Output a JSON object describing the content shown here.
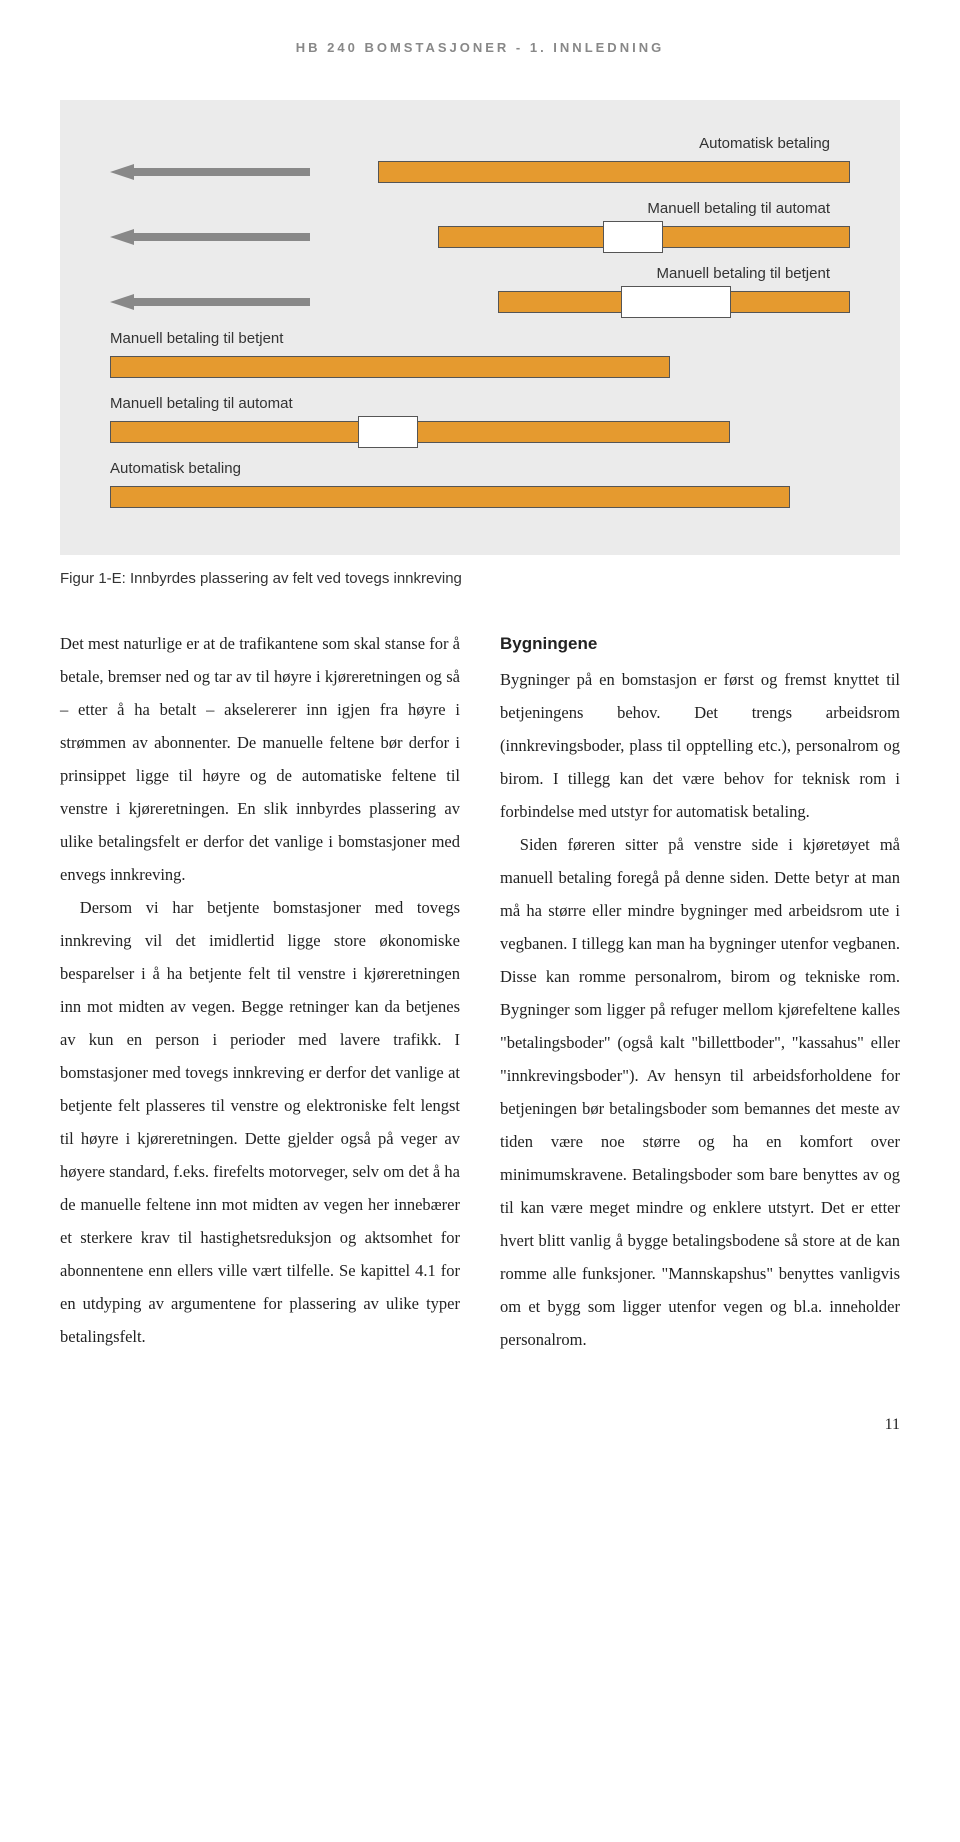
{
  "header": "HB 240 BOMSTASJONER - 1. INNLEDNING",
  "figure": {
    "lanes": [
      {
        "label": "Automatisk betaling",
        "align": "right",
        "dir": "left",
        "booth": null,
        "barOffset": 190
      },
      {
        "label": "Manuell betaling til automat",
        "align": "right",
        "dir": "left",
        "booth": "small",
        "barOffset": 130
      },
      {
        "label": "Manuell betaling til betjent",
        "align": "right",
        "dir": "left",
        "booth": "large",
        "barOffset": 70
      },
      {
        "label": "Manuell betaling til betjent",
        "align": "left",
        "dir": "right",
        "booth": null,
        "barOffset": 70
      },
      {
        "label": "Manuell betaling til automat",
        "align": "left",
        "dir": "right",
        "booth": "small",
        "barOffset": 130
      },
      {
        "label": "Automatisk betaling",
        "align": "left",
        "dir": "right",
        "booth": null,
        "barOffset": 190
      }
    ],
    "colors": {
      "arrow": "#888888",
      "bar": "#e59a2f",
      "barBorder": "#555555",
      "booth": "#ffffff",
      "bg": "#ebebeb"
    }
  },
  "caption": "Figur 1-E: Innbyrdes plassering av felt ved tovegs innkreving",
  "body": {
    "leftCol": {
      "p1": "Det mest naturlige er at de trafikantene som skal stanse for å betale, bremser ned og tar av til høyre i kjøreretningen og så – etter å ha betalt – akselererer inn igjen fra høyre i strømmen av abonnenter. De manuelle feltene bør derfor i prinsippet ligge til høyre og de automatiske feltene til venstre i kjøreretningen. En slik innbyrdes plassering av ulike betalingsfelt er derfor det vanlige i bomstasjoner med envegs innkreving.",
      "p2": "Dersom vi har betjente bomstasjoner med tovegs innkreving vil det imidlertid ligge store økonomiske besparelser i å ha betjente felt til venstre i kjøreretningen inn mot midten av vegen. Begge retninger kan da betjenes av kun en person i perioder med lavere trafikk. I bomstasjoner med tovegs innkreving er derfor det vanlige at betjente felt plasseres til venstre og elektroniske felt lengst til høyre i kjøreretningen. Dette gjelder også på veger av høyere standard, f.eks. firefelts motorveger, selv om det å ha de manuelle feltene inn mot midten av vegen her innebærer et sterkere krav til hastighetsreduksjon og aktsomhet for abonnentene enn ellers ville vært tilfelle. Se kapittel 4.1 for en utdyping av argumentene for plassering av ulike typer betalingsfelt."
    },
    "rightCol": {
      "heading": "Bygningene",
      "p1": "Bygninger på en bomstasjon er først og fremst knyttet til betjeningens behov. Det trengs arbeidsrom (innkrevingsboder, plass til opptelling etc.), personalrom og birom. I tillegg kan det være behov for teknisk rom i forbindelse med utstyr for automatisk betaling.",
      "p2": "Siden føreren sitter på venstre side i kjøretøyet må manuell betaling foregå på denne siden. Dette betyr at man må ha større eller mindre bygninger med arbeidsrom ute i vegbanen. I tillegg kan man ha bygninger utenfor vegbanen. Disse kan romme personalrom, birom og tekniske rom. Bygninger som ligger på refuger mellom kjørefeltene kalles \"betalingsboder\" (også kalt \"billettboder\", \"kassahus\" eller \"innkrevingsboder\"). Av hensyn til arbeidsforholdene for betjeningen bør betalingsboder som bemannes det meste av tiden være noe større og ha en komfort over minimumskravene. Betalingsboder som bare benyttes av og til kan være meget mindre og enklere utstyrt. Det er etter hvert blitt vanlig å bygge betalingsbodene så store at de kan romme alle funksjoner. \"Mannskapshus\" benyttes vanligvis om et bygg som ligger utenfor vegen og bl.a. inneholder personalrom."
    }
  },
  "pageNumber": "11"
}
